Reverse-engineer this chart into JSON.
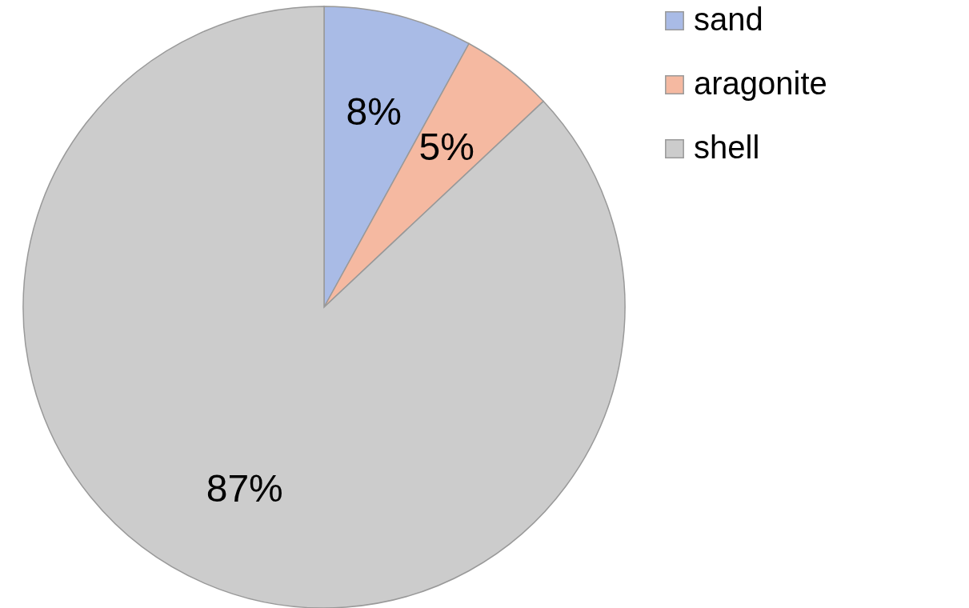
{
  "chart_data": {
    "type": "pie",
    "categories": [
      "sand",
      "aragonite",
      "shell"
    ],
    "values": [
      8,
      5,
      87
    ],
    "colors": [
      "#a9bbe6",
      "#f5b9a1",
      "#cccccc"
    ],
    "value_labels": [
      "8%",
      "5%",
      "87%"
    ],
    "legend": "right"
  }
}
